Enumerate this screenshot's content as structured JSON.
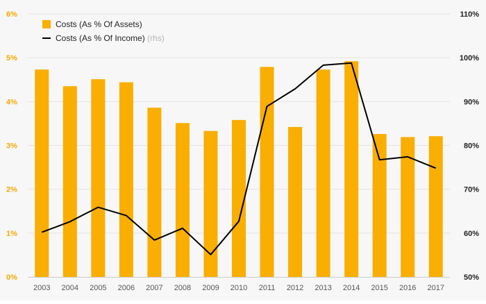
{
  "chart_data": {
    "type": "bar",
    "categories": [
      "2003",
      "2004",
      "2005",
      "2006",
      "2007",
      "2008",
      "2009",
      "2010",
      "2011",
      "2012",
      "2013",
      "2014",
      "2015",
      "2016",
      "2017"
    ],
    "series": [
      {
        "name": "Costs (As % Of Assets)",
        "type": "bar",
        "axis": "left",
        "color": "#f9ae00",
        "values": [
          4.73,
          4.35,
          4.51,
          4.44,
          3.86,
          3.51,
          3.33,
          3.58,
          4.79,
          3.42,
          4.73,
          4.92,
          3.26,
          3.19,
          3.21
        ]
      },
      {
        "name": "Costs (As % Of Income)",
        "name_suffix": "(rhs)",
        "type": "line",
        "axis": "right",
        "color": "#000000",
        "values": [
          60.2,
          62.6,
          65.9,
          64.0,
          58.4,
          61.1,
          55.1,
          62.7,
          88.9,
          92.9,
          98.3,
          98.8,
          76.7,
          77.4,
          74.8
        ]
      }
    ],
    "yleft": {
      "ylim": [
        0,
        6
      ],
      "ticks": [
        0,
        1,
        2,
        3,
        4,
        5,
        6
      ],
      "tick_labels": [
        "0%",
        "1%",
        "2%",
        "3%",
        "4%",
        "5%",
        "6%"
      ],
      "color": "#f5a800"
    },
    "yright": {
      "ylim": [
        50,
        110
      ],
      "ticks": [
        50,
        60,
        70,
        80,
        90,
        100,
        110
      ],
      "tick_labels": [
        "50%",
        "60%",
        "70%",
        "80%",
        "90%",
        "100%",
        "110%"
      ],
      "color": "#222222"
    },
    "grid": true,
    "legend": "top-left"
  }
}
